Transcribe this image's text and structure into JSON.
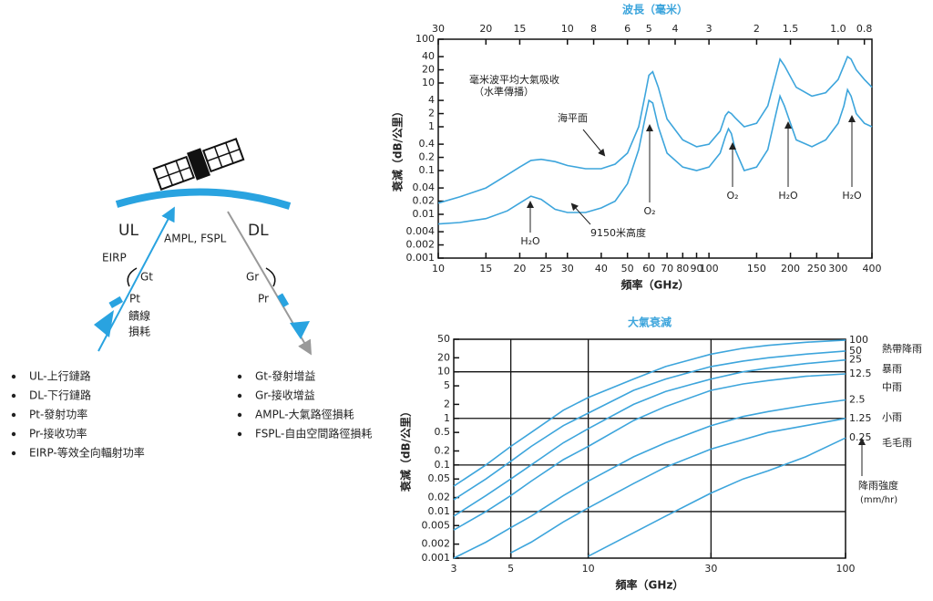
{
  "diagram": {
    "labels": {
      "ul": "UL",
      "dl": "DL",
      "path_loss": "AMPL, FSPL",
      "eirp": "EIRP",
      "gt": "Gt",
      "gr": "Gr",
      "pt": "Pt",
      "pr": "Pr",
      "feeder_loss": [
        "饋線",
        "損耗"
      ]
    },
    "legend_left": [
      "UL-上行鏈路",
      "DL-下行鏈路",
      "Pt-發射功率",
      "Pr-接收功率",
      "EIRP-等效全向輻射功率"
    ],
    "legend_right": [
      "Gt-發射增益",
      "Gr-接收增益",
      "AMPL-大氣路徑損耗",
      "FSPL-自由空間路徑損耗"
    ]
  },
  "chart_data": [
    {
      "type": "line",
      "x2label": "波長（毫米）",
      "xlabel": "頻率（GHz）",
      "ylabel": "衰減（dB/公里）",
      "xscale": "log",
      "yscale": "log",
      "xlim": [
        10,
        400
      ],
      "ylim": [
        0.001,
        100
      ],
      "xticks": [
        10,
        15,
        20,
        25,
        30,
        40,
        50,
        60,
        70,
        80,
        90,
        100,
        150,
        200,
        250,
        300,
        400
      ],
      "yticks": [
        100,
        40,
        20,
        10,
        4,
        2,
        1,
        0.4,
        0.2,
        0.1,
        0.04,
        0.02,
        0.01,
        0.004,
        0.002,
        0.001
      ],
      "x2lim": [
        30,
        0.75
      ],
      "x2ticks": [
        30,
        20,
        15,
        10,
        8,
        6,
        5,
        4,
        3,
        2,
        1.5,
        {
          "value": 1,
          "label": "1.0"
        },
        0.8
      ],
      "x": [
        10,
        12,
        15,
        18,
        20,
        22,
        24,
        27,
        30,
        35,
        40,
        45,
        50,
        55,
        58,
        60,
        62,
        65,
        70,
        80,
        90,
        100,
        110,
        115,
        118,
        121,
        125,
        135,
        150,
        165,
        175,
        183,
        190,
        210,
        240,
        270,
        300,
        315,
        325,
        335,
        350,
        375,
        400
      ],
      "series": [
        {
          "name": "海平面",
          "color": "#3da5dc",
          "values": [
            0.018,
            0.025,
            0.04,
            0.08,
            0.12,
            0.17,
            0.18,
            0.16,
            0.13,
            0.11,
            0.11,
            0.14,
            0.25,
            1,
            5,
            15,
            18,
            8,
            1.5,
            0.5,
            0.35,
            0.4,
            0.8,
            1.8,
            2.2,
            2,
            1.6,
            1,
            1.2,
            3,
            12,
            35,
            25,
            8,
            5,
            6,
            12,
            25,
            40,
            35,
            20,
            12,
            8
          ]
        },
        {
          "name": "9150米高度",
          "color": "#3da5dc",
          "values": [
            0.006,
            0.0065,
            0.008,
            0.012,
            0.018,
            0.026,
            0.022,
            0.013,
            0.011,
            0.011,
            0.014,
            0.02,
            0.05,
            0.3,
            1.5,
            4,
            3.5,
            1,
            0.25,
            0.12,
            0.1,
            0.12,
            0.25,
            0.6,
            0.9,
            0.7,
            0.3,
            0.1,
            0.12,
            0.3,
            1.5,
            5,
            3,
            0.5,
            0.35,
            0.5,
            1.2,
            3,
            7,
            5,
            2,
            1.2,
            1
          ]
        }
      ],
      "annotations": [
        "毫米波平均大氣吸收",
        "（水準傳播）",
        "H₂O",
        "O₂",
        "O₂",
        "H₂O",
        "H₂O"
      ]
    },
    {
      "type": "line",
      "title": "大氣衰減",
      "xlabel": "頻率（GHz）",
      "ylabel": "衰減（dB/公里）",
      "xscale": "log",
      "yscale": "log",
      "xlim": [
        3,
        100
      ],
      "ylim": [
        0.001,
        50
      ],
      "xticks": [
        3,
        5,
        10,
        30,
        100
      ],
      "yticks": [
        50,
        20,
        10,
        5,
        2,
        1,
        0.5,
        0.2,
        0.1,
        0.05,
        0.02,
        0.01,
        0.005,
        0.002,
        0.001
      ],
      "xgrid": [
        5,
        10,
        30
      ],
      "ygrid": [
        10,
        1,
        0.1,
        0.01
      ],
      "x": [
        3,
        4,
        5,
        6,
        8,
        10,
        15,
        20,
        30,
        40,
        50,
        70,
        100
      ],
      "series": [
        {
          "name": "100",
          "color": "#3da5dc",
          "values": [
            0.035,
            0.1,
            0.25,
            0.5,
            1.5,
            2.8,
            7,
            13,
            24,
            32,
            37,
            43,
            48
          ]
        },
        {
          "name": "50",
          "color": "#3da5dc",
          "values": [
            0.018,
            0.05,
            0.12,
            0.25,
            0.7,
            1.3,
            4,
            7,
            13,
            17,
            20,
            24,
            28
          ]
        },
        {
          "name": "25",
          "color": "#3da5dc",
          "values": [
            0.008,
            0.022,
            0.05,
            0.1,
            0.3,
            0.6,
            2,
            3.8,
            7,
            10,
            12,
            15,
            18
          ]
        },
        {
          "name": "12.5",
          "color": "#3da5dc",
          "values": [
            0.004,
            0.01,
            0.022,
            0.045,
            0.13,
            0.25,
            0.9,
            1.8,
            4,
            5.5,
            6.5,
            8,
            9
          ]
        },
        {
          "name": "2.5",
          "color": "#3da5dc",
          "values": [
            0.001,
            0.0022,
            0.0045,
            0.008,
            0.022,
            0.045,
            0.15,
            0.3,
            0.7,
            1.1,
            1.4,
            1.9,
            2.5
          ]
        },
        {
          "name": "1.25",
          "color": "#3da5dc",
          "values": [
            null,
            null,
            0.0013,
            0.0022,
            0.006,
            0.012,
            0.04,
            0.09,
            0.22,
            0.35,
            0.5,
            0.7,
            1
          ]
        },
        {
          "name": "0.25",
          "color": "#3da5dc",
          "values": [
            null,
            null,
            null,
            null,
            null,
            0.0011,
            0.0035,
            0.008,
            0.025,
            0.05,
            0.075,
            0.15,
            0.38
          ]
        }
      ],
      "annotations": [
        "熱帶降雨",
        "暴雨",
        "中雨",
        "小雨",
        "毛毛雨"
      ],
      "legend_title": [
        "降雨強度",
        "(mm/hr)"
      ]
    }
  ]
}
